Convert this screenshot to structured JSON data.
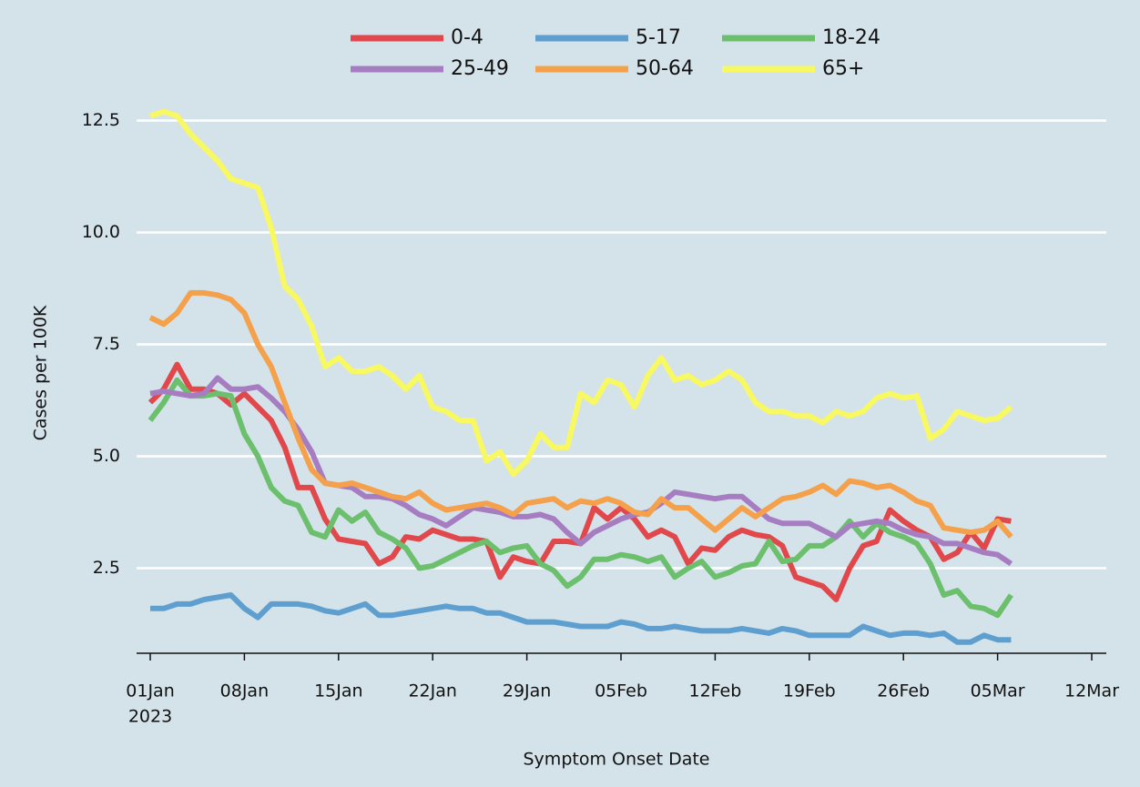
{
  "chart_data": {
    "type": "line",
    "x_label": "Symptom Onset Date",
    "y_label": "Cases per 100K",
    "x": [
      "2023-01-01",
      "2023-01-02",
      "2023-01-03",
      "2023-01-04",
      "2023-01-05",
      "2023-01-06",
      "2023-01-07",
      "2023-01-08",
      "2023-01-09",
      "2023-01-10",
      "2023-01-11",
      "2023-01-12",
      "2023-01-13",
      "2023-01-14",
      "2023-01-15",
      "2023-01-16",
      "2023-01-17",
      "2023-01-18",
      "2023-01-19",
      "2023-01-20",
      "2023-01-21",
      "2023-01-22",
      "2023-01-23",
      "2023-01-24",
      "2023-01-25",
      "2023-01-26",
      "2023-01-27",
      "2023-01-28",
      "2023-01-29",
      "2023-01-30",
      "2023-01-31",
      "2023-02-01",
      "2023-02-02",
      "2023-02-03",
      "2023-02-04",
      "2023-02-05",
      "2023-02-06",
      "2023-02-07",
      "2023-02-08",
      "2023-02-09",
      "2023-02-10",
      "2023-02-11",
      "2023-02-12",
      "2023-02-13",
      "2023-02-14",
      "2023-02-15",
      "2023-02-16",
      "2023-02-17",
      "2023-02-18",
      "2023-02-19",
      "2023-02-20",
      "2023-02-21",
      "2023-02-22",
      "2023-02-23",
      "2023-02-24",
      "2023-02-25",
      "2023-02-26",
      "2023-02-27",
      "2023-02-28",
      "2023-03-01",
      "2023-03-02",
      "2023-03-03",
      "2023-03-04",
      "2023-03-05",
      "2023-03-06"
    ],
    "series": [
      {
        "name": "0-4",
        "color": "#e0484b",
        "values": [
          6.2,
          6.5,
          7.05,
          6.5,
          6.5,
          6.4,
          6.15,
          6.4,
          6.1,
          5.8,
          5.2,
          4.3,
          4.3,
          3.6,
          3.15,
          3.1,
          3.05,
          2.6,
          2.75,
          3.2,
          3.15,
          3.35,
          3.25,
          3.15,
          3.15,
          3.1,
          2.3,
          2.75,
          2.65,
          2.6,
          3.1,
          3.1,
          3.05,
          3.85,
          3.6,
          3.85,
          3.6,
          3.2,
          3.35,
          3.2,
          2.6,
          2.95,
          2.9,
          3.2,
          3.35,
          3.25,
          3.2,
          3.0,
          2.3,
          2.2,
          2.1,
          1.8,
          2.5,
          3.0,
          3.1,
          3.8,
          3.55,
          3.35,
          3.2,
          2.7,
          2.85,
          3.3,
          2.95,
          3.6,
          3.55
        ]
      },
      {
        "name": "5-17",
        "color": "#5e9fd0",
        "values": [
          1.6,
          1.6,
          1.7,
          1.7,
          1.8,
          1.85,
          1.9,
          1.6,
          1.4,
          1.7,
          1.7,
          1.7,
          1.65,
          1.55,
          1.5,
          1.6,
          1.7,
          1.45,
          1.45,
          1.5,
          1.55,
          1.6,
          1.65,
          1.6,
          1.6,
          1.5,
          1.5,
          1.4,
          1.3,
          1.3,
          1.3,
          1.25,
          1.2,
          1.2,
          1.2,
          1.3,
          1.25,
          1.15,
          1.15,
          1.2,
          1.15,
          1.1,
          1.1,
          1.1,
          1.15,
          1.1,
          1.05,
          1.15,
          1.1,
          1.0,
          1.0,
          1.0,
          1.0,
          1.2,
          1.1,
          1.0,
          1.05,
          1.05,
          1.0,
          1.05,
          0.85,
          0.85,
          1.0,
          0.9,
          0.9
        ]
      },
      {
        "name": "18-24",
        "color": "#6cbf6c",
        "values": [
          5.8,
          6.2,
          6.7,
          6.35,
          6.35,
          6.4,
          6.35,
          5.5,
          5.0,
          4.3,
          4.0,
          3.9,
          3.3,
          3.2,
          3.8,
          3.55,
          3.75,
          3.3,
          3.15,
          2.95,
          2.5,
          2.55,
          2.7,
          2.85,
          3.0,
          3.1,
          2.85,
          2.95,
          3.0,
          2.6,
          2.45,
          2.1,
          2.3,
          2.7,
          2.7,
          2.8,
          2.75,
          2.65,
          2.75,
          2.3,
          2.5,
          2.65,
          2.3,
          2.4,
          2.55,
          2.6,
          3.1,
          2.65,
          2.7,
          3.0,
          3.0,
          3.2,
          3.55,
          3.2,
          3.5,
          3.3,
          3.2,
          3.05,
          2.6,
          1.9,
          2.0,
          1.65,
          1.6,
          1.45,
          1.9
        ]
      },
      {
        "name": "25-49",
        "color": "#a77dc2",
        "values": [
          6.4,
          6.45,
          6.4,
          6.35,
          6.4,
          6.75,
          6.5,
          6.5,
          6.55,
          6.3,
          6.0,
          5.6,
          5.1,
          4.4,
          4.35,
          4.3,
          4.1,
          4.1,
          4.05,
          3.9,
          3.7,
          3.6,
          3.45,
          3.65,
          3.85,
          3.8,
          3.75,
          3.65,
          3.65,
          3.7,
          3.6,
          3.3,
          3.05,
          3.3,
          3.45,
          3.6,
          3.7,
          3.75,
          3.95,
          4.2,
          4.15,
          4.1,
          4.05,
          4.1,
          4.1,
          3.85,
          3.6,
          3.5,
          3.5,
          3.5,
          3.35,
          3.2,
          3.45,
          3.5,
          3.55,
          3.5,
          3.35,
          3.25,
          3.2,
          3.05,
          3.05,
          2.95,
          2.85,
          2.8,
          2.6
        ]
      },
      {
        "name": "50-64",
        "color": "#f5a04a",
        "values": [
          8.1,
          7.95,
          8.2,
          8.65,
          8.65,
          8.6,
          8.5,
          8.2,
          7.5,
          7.0,
          6.2,
          5.4,
          4.7,
          4.4,
          4.35,
          4.4,
          4.3,
          4.2,
          4.1,
          4.05,
          4.2,
          3.95,
          3.8,
          3.85,
          3.9,
          3.95,
          3.85,
          3.7,
          3.95,
          4.0,
          4.05,
          3.85,
          4.0,
          3.95,
          4.05,
          3.95,
          3.75,
          3.7,
          4.05,
          3.85,
          3.85,
          3.6,
          3.35,
          3.6,
          3.85,
          3.65,
          3.85,
          4.05,
          4.1,
          4.2,
          4.35,
          4.15,
          4.45,
          4.4,
          4.3,
          4.35,
          4.2,
          4.0,
          3.9,
          3.4,
          3.35,
          3.3,
          3.35,
          3.55,
          3.2
        ]
      },
      {
        "name": "65+",
        "color": "#f8f860",
        "values": [
          12.6,
          12.7,
          12.6,
          12.2,
          11.9,
          11.6,
          11.2,
          11.1,
          11.0,
          10.1,
          8.8,
          8.5,
          7.9,
          7.0,
          7.2,
          6.9,
          6.9,
          7.0,
          6.8,
          6.5,
          6.8,
          6.1,
          6.0,
          5.8,
          5.8,
          4.9,
          5.1,
          4.6,
          4.9,
          5.5,
          5.2,
          5.2,
          6.4,
          6.2,
          6.7,
          6.6,
          6.1,
          6.8,
          7.2,
          6.7,
          6.8,
          6.6,
          6.7,
          6.9,
          6.7,
          6.2,
          6.0,
          6.0,
          5.9,
          5.9,
          5.75,
          6.0,
          5.9,
          6.0,
          6.3,
          6.4,
          6.3,
          6.35,
          5.4,
          5.6,
          6.0,
          5.9,
          5.8,
          5.85,
          6.1
        ]
      }
    ],
    "xlim": [
      "2023-01-01",
      "2023-03-12"
    ],
    "xticks": [
      {
        "value": "2023-01-01",
        "label": "01Jan"
      },
      {
        "value": "2023-01-08",
        "label": "08Jan"
      },
      {
        "value": "2023-01-15",
        "label": "15Jan"
      },
      {
        "value": "2023-01-22",
        "label": "22Jan"
      },
      {
        "value": "2023-01-29",
        "label": "29Jan"
      },
      {
        "value": "2023-02-05",
        "label": "05Feb"
      },
      {
        "value": "2023-02-12",
        "label": "12Feb"
      },
      {
        "value": "2023-02-19",
        "label": "19Feb"
      },
      {
        "value": "2023-02-26",
        "label": "26Feb"
      },
      {
        "value": "2023-03-05",
        "label": "05Mar"
      },
      {
        "value": "2023-03-12",
        "label": "12Mar"
      }
    ],
    "x_year_label": "2023",
    "ylim": [
      0.6,
      13.2
    ],
    "yticks": [
      2.5,
      {
        "value": 5,
        "label": "5.0"
      },
      {
        "value": 7.5,
        "label": "7.5"
      },
      {
        "value": 10,
        "label": "10.0"
      },
      12.5
    ],
    "grid": true,
    "grid_color": "#ffffff",
    "legend_position": "top"
  }
}
